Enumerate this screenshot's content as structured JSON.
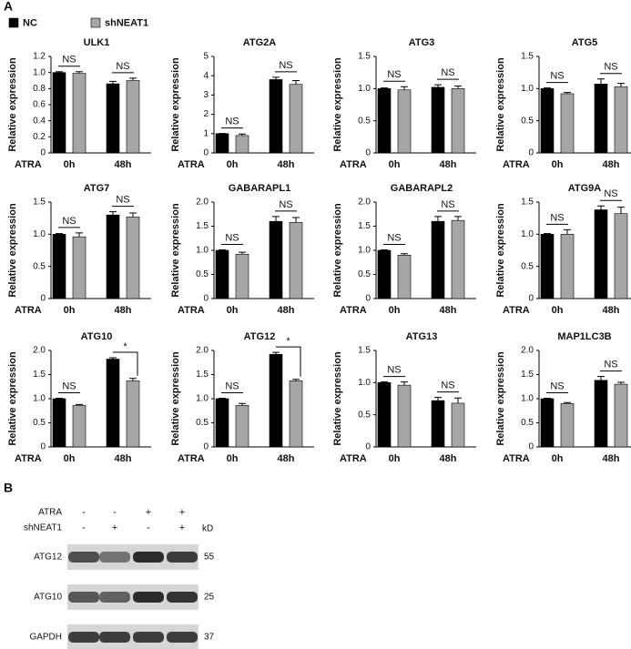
{
  "panel_labels": [
    "A",
    "B"
  ],
  "legend": [
    {
      "name": "NC",
      "color": "#000000"
    },
    {
      "name": "shNEAT1",
      "color": "#a6a6a6"
    }
  ],
  "chart_data": [
    {
      "type": "bar",
      "title": "ULK1",
      "y_label": "Relative expression",
      "x_label": "ATRA",
      "categories": [
        "0h",
        "48h"
      ],
      "series": [
        {
          "values": [
            1.0,
            0.86
          ],
          "errors": [
            0.01,
            0.03
          ]
        },
        {
          "values": [
            0.99,
            0.9
          ],
          "errors": [
            0.02,
            0.03
          ]
        }
      ],
      "annotations": [
        "NS",
        "NS"
      ],
      "ylim": [
        0,
        1.2
      ],
      "yticks": [
        0,
        {
          "value": 0.2,
          "label": "0.2"
        },
        {
          "value": 0.4,
          "label": "0.4"
        },
        {
          "value": 0.6,
          "label": "0.6"
        },
        {
          "value": 0.8,
          "label": "0.8"
        },
        {
          "value": 1,
          "label": "1.0"
        },
        {
          "value": 1.2,
          "label": "1.2"
        }
      ]
    },
    {
      "type": "bar",
      "title": "ATG2A",
      "y_label": "Relative expression",
      "x_label": "ATRA",
      "categories": [
        "0h",
        "48h"
      ],
      "series": [
        {
          "values": [
            1.0,
            3.8
          ],
          "errors": [
            0.01,
            0.12
          ]
        },
        {
          "values": [
            0.9,
            3.55
          ],
          "errors": [
            0.08,
            0.2
          ]
        }
      ],
      "annotations": [
        "NS",
        "NS"
      ],
      "ylim": [
        0,
        5
      ],
      "yticks": [
        0,
        1,
        2,
        3,
        4,
        5
      ]
    },
    {
      "type": "bar",
      "title": "ATG3",
      "y_label": "Relative expression",
      "x_label": "ATRA",
      "categories": [
        "0h",
        "48h"
      ],
      "series": [
        {
          "values": [
            1.0,
            1.02
          ],
          "errors": [
            0.01,
            0.04
          ]
        },
        {
          "values": [
            0.98,
            1.0
          ],
          "errors": [
            0.05,
            0.04
          ]
        }
      ],
      "annotations": [
        "NS",
        "NS"
      ],
      "ylim": [
        0,
        1.5
      ],
      "yticks": [
        0,
        0.5,
        {
          "value": 1,
          "label": "1.0"
        },
        1.5
      ]
    },
    {
      "type": "bar",
      "title": "ATG5",
      "y_label": "Relative expression",
      "x_label": "ATRA",
      "categories": [
        "0h",
        "48h"
      ],
      "series": [
        {
          "values": [
            1.0,
            1.07
          ],
          "errors": [
            0.01,
            0.08
          ]
        },
        {
          "values": [
            0.92,
            1.03
          ],
          "errors": [
            0.02,
            0.05
          ]
        }
      ],
      "annotations": [
        "NS",
        "NS"
      ],
      "ylim": [
        0,
        1.5
      ],
      "yticks": [
        0,
        0.5,
        {
          "value": 1,
          "label": "1.0"
        },
        1.5
      ]
    },
    {
      "type": "bar",
      "title": "ATG7",
      "y_label": "Relative expression",
      "x_label": "ATRA",
      "categories": [
        "0h",
        "48h"
      ],
      "series": [
        {
          "values": [
            1.0,
            1.3
          ],
          "errors": [
            0.01,
            0.05
          ]
        },
        {
          "values": [
            0.96,
            1.27
          ],
          "errors": [
            0.06,
            0.06
          ]
        }
      ],
      "annotations": [
        "NS",
        "NS"
      ],
      "ylim": [
        0,
        1.5
      ],
      "yticks": [
        0,
        0.5,
        {
          "value": 1,
          "label": "1.0"
        },
        1.5
      ]
    },
    {
      "type": "bar",
      "title": "GABARAPL1",
      "y_label": "Relative expression",
      "x_label": "ATRA",
      "categories": [
        "0h",
        "48h"
      ],
      "series": [
        {
          "values": [
            1.0,
            1.6
          ],
          "errors": [
            0.01,
            0.1
          ]
        },
        {
          "values": [
            0.92,
            1.58
          ],
          "errors": [
            0.04,
            0.1
          ]
        }
      ],
      "annotations": [
        "NS",
        "NS"
      ],
      "ylim": [
        0,
        2
      ],
      "yticks": [
        0,
        0.5,
        {
          "value": 1,
          "label": "1.0"
        },
        1.5,
        {
          "value": 2,
          "label": "2.0"
        }
      ]
    },
    {
      "type": "bar",
      "title": "GABARAPL2",
      "y_label": "Relative expression",
      "x_label": "ATRA",
      "categories": [
        "0h",
        "48h"
      ],
      "series": [
        {
          "values": [
            1.0,
            1.6
          ],
          "errors": [
            0.01,
            0.1
          ]
        },
        {
          "values": [
            0.9,
            1.62
          ],
          "errors": [
            0.03,
            0.08
          ]
        }
      ],
      "annotations": [
        "NS",
        "NS"
      ],
      "ylim": [
        0,
        2
      ],
      "yticks": [
        0,
        0.5,
        {
          "value": 1,
          "label": "1.0"
        },
        1.5,
        {
          "value": 2,
          "label": "2.0"
        }
      ]
    },
    {
      "type": "bar",
      "title": "ATG9A",
      "y_label": "Relative expression",
      "x_label": "ATRA",
      "categories": [
        "0h",
        "48h"
      ],
      "series": [
        {
          "values": [
            1.0,
            1.38
          ],
          "errors": [
            0.01,
            0.06
          ]
        },
        {
          "values": [
            1.0,
            1.32
          ],
          "errors": [
            0.07,
            0.1
          ]
        }
      ],
      "annotations": [
        "NS",
        "NS"
      ],
      "ylim": [
        0,
        1.5
      ],
      "yticks": [
        0,
        0.5,
        {
          "value": 1,
          "label": "1.0"
        },
        1.5
      ]
    },
    {
      "type": "bar",
      "title": "ATG10",
      "y_label": "Relative expression",
      "x_label": "ATRA",
      "categories": [
        "0h",
        "48h"
      ],
      "series": [
        {
          "values": [
            1.0,
            1.82
          ],
          "errors": [
            0.01,
            0.03
          ]
        },
        {
          "values": [
            0.86,
            1.37
          ],
          "errors": [
            0.02,
            0.05
          ]
        }
      ],
      "annotations": [
        "NS",
        "*"
      ],
      "ylim": [
        0,
        2
      ],
      "yticks": [
        0,
        0.5,
        {
          "value": 1,
          "label": "1.0"
        },
        1.5,
        {
          "value": 2,
          "label": "2.0"
        }
      ]
    },
    {
      "type": "bar",
      "title": "ATG12",
      "y_label": "Relative expression",
      "x_label": "ATRA",
      "categories": [
        "0h",
        "48h"
      ],
      "series": [
        {
          "values": [
            1.0,
            1.92
          ],
          "errors": [
            0.01,
            0.04
          ]
        },
        {
          "values": [
            0.86,
            1.37
          ],
          "errors": [
            0.04,
            0.03
          ]
        }
      ],
      "annotations": [
        "NS",
        "*"
      ],
      "ylim": [
        0,
        2
      ],
      "yticks": [
        0,
        0.5,
        {
          "value": 1,
          "label": "1.0"
        },
        1.5,
        {
          "value": 2,
          "label": "2.0"
        }
      ]
    },
    {
      "type": "bar",
      "title": "ATG13",
      "y_label": "Relative expression",
      "x_label": "ATRA",
      "categories": [
        "0h",
        "48h"
      ],
      "series": [
        {
          "values": [
            1.0,
            0.72
          ],
          "errors": [
            0.01,
            0.05
          ]
        },
        {
          "values": [
            0.96,
            0.68
          ],
          "errors": [
            0.05,
            0.08
          ]
        }
      ],
      "annotations": [
        "NS",
        "NS"
      ],
      "ylim": [
        0,
        1.5
      ],
      "yticks": [
        0,
        0.5,
        {
          "value": 1,
          "label": "1.0"
        },
        1.5
      ]
    },
    {
      "type": "bar",
      "title": "MAP1LC3B",
      "y_label": "Relative expression",
      "x_label": "ATRA",
      "categories": [
        "0h",
        "48h"
      ],
      "series": [
        {
          "values": [
            1.0,
            1.38
          ],
          "errors": [
            0.01,
            0.08
          ]
        },
        {
          "values": [
            0.9,
            1.3
          ],
          "errors": [
            0.02,
            0.04
          ]
        }
      ],
      "annotations": [
        "NS",
        "NS"
      ],
      "ylim": [
        0,
        2
      ],
      "yticks": [
        0,
        0.5,
        {
          "value": 1,
          "label": "1.0"
        },
        1.5,
        {
          "value": 2,
          "label": "2.0"
        }
      ]
    }
  ],
  "blot": {
    "conditions": [
      {
        "name": "ATRA",
        "marks": [
          "-",
          "-",
          "+",
          "+"
        ]
      },
      {
        "name": "shNEAT1",
        "marks": [
          "-",
          "+",
          "-",
          "+"
        ]
      }
    ],
    "unit": "kD",
    "rows": [
      {
        "name": "ATG12",
        "kd": "55"
      },
      {
        "name": "ATG10",
        "kd": "25"
      },
      {
        "name": "GAPDH",
        "kd": "37"
      }
    ]
  }
}
